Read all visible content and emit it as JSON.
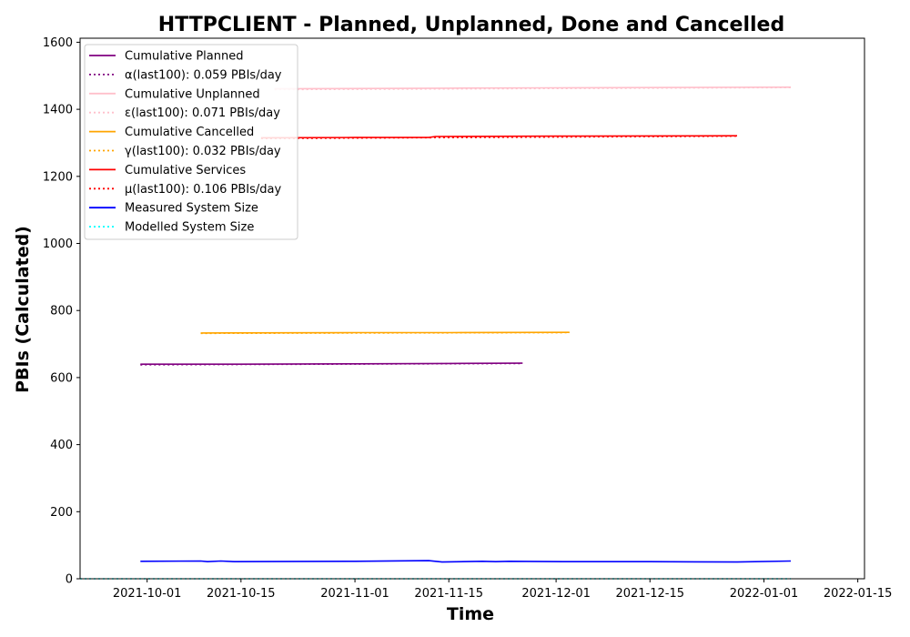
{
  "chart_data": {
    "type": "line",
    "title": "HTTPCLIENT - Planned, Unplanned, Done  and Cancelled",
    "xlabel": "Time",
    "ylabel": "PBIs (Calculated)",
    "xlim": [
      "2021-09-21",
      "2022-01-16"
    ],
    "ylim": [
      0,
      1612
    ],
    "x_ticks": [
      "2021-10-01",
      "2021-10-15",
      "2021-11-01",
      "2021-11-15",
      "2021-12-01",
      "2021-12-15",
      "2022-01-01",
      "2022-01-15"
    ],
    "y_ticks": [
      0,
      200,
      400,
      600,
      800,
      1000,
      1200,
      1400,
      1600
    ],
    "grid": false,
    "legend_position": "upper-left",
    "series": [
      {
        "name": "Cumulative Planned",
        "color": "#800080",
        "style": "solid",
        "points": [
          [
            "2021-09-30",
            640
          ],
          [
            "2021-10-15",
            640
          ],
          [
            "2021-11-01",
            641
          ],
          [
            "2021-11-15",
            642
          ],
          [
            "2021-11-26",
            643
          ]
        ]
      },
      {
        "name": "α(last100): 0.059 PBIs/day",
        "color": "#800080",
        "style": "dotted",
        "points": [
          [
            "2021-09-30",
            638
          ],
          [
            "2021-11-26",
            642
          ]
        ]
      },
      {
        "name": "Cumulative Unplanned",
        "color": "#ffc0cb",
        "style": "solid",
        "points": [
          [
            "2021-10-20",
            1461
          ],
          [
            "2021-11-15",
            1463
          ],
          [
            "2021-12-01",
            1464
          ],
          [
            "2021-12-15",
            1465
          ],
          [
            "2022-01-05",
            1466
          ]
        ]
      },
      {
        "name": "ε(last100): 0.071 PBIs/day",
        "color": "#ffc0cb",
        "style": "dotted",
        "points": [
          [
            "2021-10-20",
            1459
          ],
          [
            "2022-01-05",
            1465
          ]
        ]
      },
      {
        "name": "Cumulative Cancelled",
        "color": "#ffa500",
        "style": "solid",
        "points": [
          [
            "2021-10-09",
            733
          ],
          [
            "2021-11-01",
            734
          ],
          [
            "2021-11-15",
            734
          ],
          [
            "2021-12-03",
            735
          ]
        ]
      },
      {
        "name": "γ(last100): 0.032 PBIs/day",
        "color": "#ffa500",
        "style": "dotted",
        "points": [
          [
            "2021-10-09",
            732
          ],
          [
            "2021-12-03",
            734
          ]
        ]
      },
      {
        "name": "Cumulative Services",
        "color": "#ff0000",
        "style": "solid",
        "points": [
          [
            "2021-10-18",
            1315
          ],
          [
            "2021-11-01",
            1316
          ],
          [
            "2021-11-12",
            1316
          ],
          [
            "2021-11-13",
            1319
          ],
          [
            "2021-12-01",
            1320
          ],
          [
            "2021-12-28",
            1321
          ]
        ]
      },
      {
        "name": "μ(last100): 0.106 PBIs/day",
        "color": "#ff0000",
        "style": "dotted",
        "points": [
          [
            "2021-10-18",
            1313
          ],
          [
            "2021-12-28",
            1320
          ]
        ]
      },
      {
        "name": "Measured System Size",
        "color": "#0000ff",
        "style": "solid",
        "points": [
          [
            "2021-09-30",
            52
          ],
          [
            "2021-10-09",
            53
          ],
          [
            "2021-10-10",
            51
          ],
          [
            "2021-10-12",
            53
          ],
          [
            "2021-10-14",
            51
          ],
          [
            "2021-11-01",
            52
          ],
          [
            "2021-11-12",
            54
          ],
          [
            "2021-11-14",
            50
          ],
          [
            "2021-11-20",
            52
          ],
          [
            "2021-11-22",
            51
          ],
          [
            "2021-11-24",
            52
          ],
          [
            "2021-12-02",
            51
          ],
          [
            "2021-12-15",
            51
          ],
          [
            "2021-12-28",
            50
          ],
          [
            "2022-01-05",
            53
          ]
        ]
      },
      {
        "name": "Modelled System Size",
        "color": "#00ffff",
        "style": "dotted",
        "points": [
          [
            "2021-09-21",
            0
          ],
          [
            "2022-01-05",
            0
          ]
        ]
      }
    ]
  }
}
